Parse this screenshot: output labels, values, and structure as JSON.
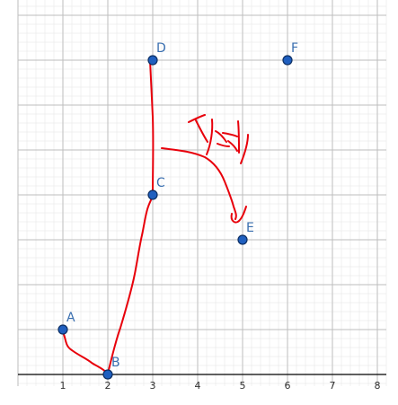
{
  "board": {
    "x_ticks": [
      "1",
      "2",
      "3",
      "4",
      "5",
      "6",
      "7",
      "8"
    ],
    "point_color": "#1f5fbf",
    "label_color": "#3a6fb0",
    "stroke_color": "#e8000b",
    "points": [
      {
        "label": "A",
        "x": 1,
        "y": 1
      },
      {
        "label": "B",
        "x": 2,
        "y": 0
      },
      {
        "label": "C",
        "x": 3,
        "y": 4
      },
      {
        "label": "D",
        "x": 3,
        "y": 7
      },
      {
        "label": "E",
        "x": 5,
        "y": 3
      },
      {
        "label": "F",
        "x": 6,
        "y": 7
      }
    ]
  }
}
